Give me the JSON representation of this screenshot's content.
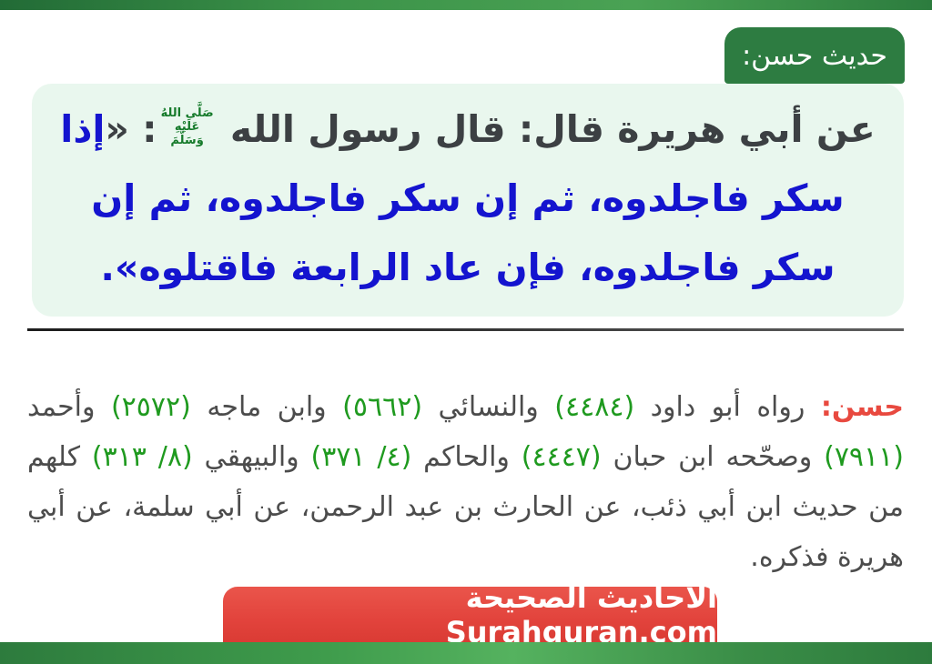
{
  "badge": {
    "label": "حديث حسن:"
  },
  "hadith": {
    "intro": "عن أبي هريرة قال: قال رسول الله ",
    "saw_stack": [
      "صَلَّى اللهُ",
      "عَلَيْهِ",
      "وَسَلَّمَ"
    ],
    "colon_quote": ": «",
    "matn": "إذا سكر فاجلدوه، ثم إن سكر فاجلدوه، ثم إن سكر فاجلدوه، فإن عاد الرابعة فاقتلوه»."
  },
  "grading": {
    "segments": [
      {
        "t": "حسن:",
        "c": "red"
      },
      {
        "t": " رواه أبو داود ",
        "c": "dark"
      },
      {
        "t": "(٤٤٨٤)",
        "c": "green"
      },
      {
        "t": " والنسائي ",
        "c": "dark"
      },
      {
        "t": "(٥٦٦٢)",
        "c": "green"
      },
      {
        "t": " وابن ماجه ",
        "c": "dark"
      },
      {
        "t": "(٢٥٧٢)",
        "c": "green"
      },
      {
        "t": " وأحمد ",
        "c": "dark"
      },
      {
        "t": "(٧٩١١)",
        "c": "green"
      },
      {
        "t": " وصحّحه ابن حبان ",
        "c": "dark"
      },
      {
        "t": "(٤٤٤٧)",
        "c": "green"
      },
      {
        "t": " والحاكم ",
        "c": "dark"
      },
      {
        "t": "(٤/ ٣٧١)",
        "c": "green"
      },
      {
        "t": " والبيهقي ",
        "c": "dark"
      },
      {
        "t": "(٨/ ٣١٣)",
        "c": "green"
      },
      {
        "t": " كلهم من حديث ابن أبي ذئب، عن الحارث بن عبد الرحمن، عن أبي سلمة، عن أبي هريرة فذكره.",
        "c": "dark"
      }
    ]
  },
  "footer": {
    "site_label": "الأحاديث الصحيحة Surahquran.com"
  },
  "colors": {
    "bar-green-dark": "#226b36",
    "bar-green-light": "#4aa254",
    "badge-green": "#2d7c41",
    "box-bg": "#e9f7ee",
    "hadith-dark": "#3c4043",
    "hadith-blue": "#1414cf",
    "saw-green": "#157a2a",
    "grade-red": "#e8493f",
    "number-green": "#1f9a1f",
    "body-text": "#4c4c4c",
    "divider": "#2b2b2b",
    "footer-red": "#e2433c"
  }
}
